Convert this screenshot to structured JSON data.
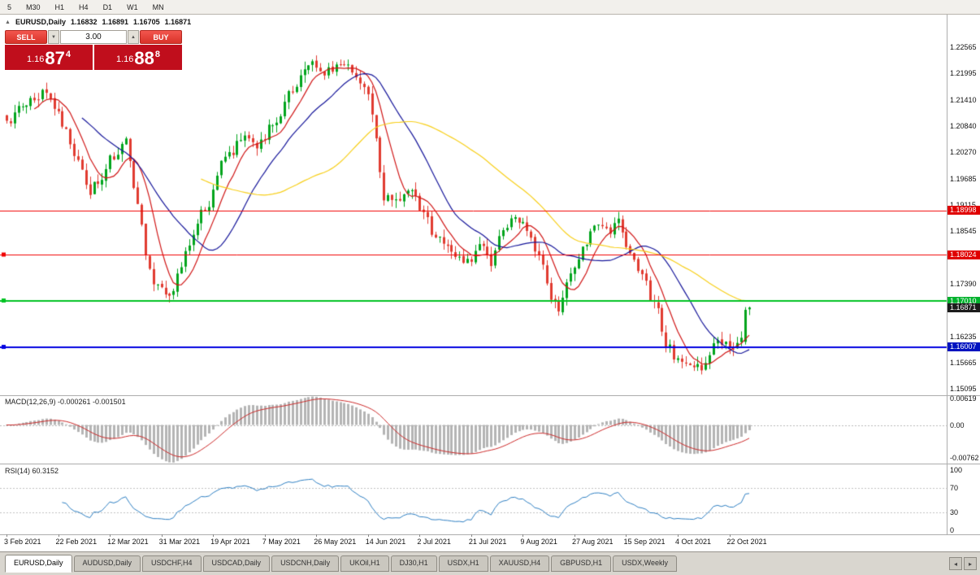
{
  "toolbar": {
    "timeframes": [
      "5",
      "M30",
      "H1",
      "H4",
      "D1",
      "W1",
      "MN"
    ]
  },
  "chart": {
    "icon": "▲",
    "symbol_title": "EURUSD,Daily",
    "ohlc": {
      "open": "1.16832",
      "high": "1.16891",
      "low": "1.16705",
      "close": "1.16871"
    },
    "trade_panel": {
      "sell_label": "SELL",
      "buy_label": "BUY",
      "volume": "3.00",
      "down_icon": "▼",
      "up_icon": "▲",
      "sell_price": {
        "prefix": "1.16",
        "big": "87",
        "sup": "4"
      },
      "buy_price": {
        "prefix": "1.16",
        "big": "88",
        "sup": "8"
      },
      "panel_color": "#c00e1c",
      "button_color": "#d93229"
    },
    "axis_labels": [
      {
        "text": "1.22565",
        "price": 1.22565
      },
      {
        "text": "1.21995",
        "price": 1.21995
      },
      {
        "text": "1.21410",
        "price": 1.2141
      },
      {
        "text": "1.20840",
        "price": 1.2084
      },
      {
        "text": "1.20270",
        "price": 1.2027
      },
      {
        "text": "1.19685",
        "price": 1.19685
      },
      {
        "text": "1.19115",
        "price": 1.19115
      },
      {
        "text": "1.18545",
        "price": 1.18545
      },
      {
        "text": "1.17390",
        "price": 1.1739
      },
      {
        "text": "1.16235",
        "price": 1.16235
      },
      {
        "text": "1.15665",
        "price": 1.15665
      },
      {
        "text": "1.15095",
        "price": 1.15095
      }
    ],
    "level_boxes": [
      {
        "text": "1.18998",
        "price": 1.18998,
        "bg": "#e00000"
      },
      {
        "text": "1.18024",
        "price": 1.18024,
        "bg": "#e00000"
      },
      {
        "text": "1.17010",
        "price": 1.1701,
        "bg": "#00b22d"
      },
      {
        "text": "1.16871",
        "price": 1.16871,
        "bg": "#1c1c1c"
      },
      {
        "text": "1.16007",
        "price": 1.16007,
        "bg": "#0013c0"
      }
    ],
    "date_labels": [
      "3 Feb 2021",
      "22 Feb 2021",
      "12 Mar 2021",
      "31 Mar 2021",
      "19 Apr 2021",
      "7 May 2021",
      "26 May 2021",
      "14 Jun 2021",
      "2 Jul 2021",
      "21 Jul 2021",
      "9 Aug 2021",
      "27 Aug 2021",
      "15 Sep 2021",
      "4 Oct 2021",
      "22 Oct 2021"
    ]
  },
  "indicators": {
    "macd": {
      "label": "MACD(12,26,9) -0.000261 -0.001501",
      "axis_labels": [
        {
          "text": "0.00619",
          "value": 0.00619
        },
        {
          "text": "0.00",
          "value": 0
        },
        {
          "text": "-0.00762",
          "value": -0.00762
        }
      ]
    },
    "rsi": {
      "label": "RSI(14) 60.3152",
      "axis_labels": [
        {
          "text": "100",
          "value": 100
        },
        {
          "text": "70",
          "value": 70
        },
        {
          "text": "30",
          "value": 30
        },
        {
          "text": "0",
          "value": 0
        }
      ]
    }
  },
  "tab_bar": {
    "tabs": [
      {
        "label": "EURUSD,Daily",
        "active": true
      },
      {
        "label": "AUDUSD,Daily",
        "active": false
      },
      {
        "label": "USDCHF,H4",
        "active": false
      },
      {
        "label": "USDCAD,Daily",
        "active": false
      },
      {
        "label": "USDCNH,Daily",
        "active": false
      },
      {
        "label": "UKOil,H1",
        "active": false
      },
      {
        "label": "DJ30,H1",
        "active": false
      },
      {
        "label": "USDX,H1",
        "active": false
      },
      {
        "label": "XAUUSD,H4",
        "active": false
      },
      {
        "label": "GBPUSD,H1",
        "active": false
      },
      {
        "label": "USDX,Weekly",
        "active": false
      }
    ],
    "scroll_left_icon": "◂",
    "scroll_right_icon": "▸"
  },
  "chart_data": {
    "type": "candlestick",
    "symbol": "EURUSD",
    "timeframe": "Daily",
    "n_candles": 188,
    "x_range": [
      "3 Feb 2021",
      "22 Oct 2021"
    ],
    "y_axis_visible": [
      1.15095,
      1.22565
    ],
    "visible_ohlc": {
      "open": 1.16832,
      "high": 1.16891,
      "low": 1.16705,
      "close": 1.16871
    },
    "last_candle": {
      "open": 1.16832,
      "high": 1.16891,
      "low": 1.16705,
      "close": 1.16871
    },
    "prev_candle": {
      "open": 1.1612,
      "high": 1.1688,
      "low": 1.1606,
      "close": 1.1682
    },
    "price_anchors": [
      [
        0,
        1.2095
      ],
      [
        4,
        1.213
      ],
      [
        9,
        1.2165
      ],
      [
        12,
        1.2115
      ],
      [
        15,
        1.207
      ],
      [
        18,
        1.2
      ],
      [
        21,
        1.195
      ],
      [
        24,
        1.1975
      ],
      [
        27,
        1.2015
      ],
      [
        30,
        1.204
      ],
      [
        33,
        1.193
      ],
      [
        35,
        1.18
      ],
      [
        38,
        1.174
      ],
      [
        41,
        1.1712
      ],
      [
        43,
        1.176
      ],
      [
        46,
        1.183
      ],
      [
        50,
        1.1905
      ],
      [
        55,
        1.2
      ],
      [
        60,
        1.206
      ],
      [
        63,
        1.2035
      ],
      [
        67,
        1.209
      ],
      [
        72,
        1.2155
      ],
      [
        76,
        1.2225
      ],
      [
        79,
        1.219
      ],
      [
        83,
        1.221
      ],
      [
        86,
        1.2228
      ],
      [
        89,
        1.2175
      ],
      [
        91,
        1.214
      ],
      [
        93,
        1.204
      ],
      [
        95,
        1.193
      ],
      [
        99,
        1.1908
      ],
      [
        102,
        1.1945
      ],
      [
        105,
        1.1895
      ],
      [
        108,
        1.1845
      ],
      [
        112,
        1.1822
      ],
      [
        116,
        1.1788
      ],
      [
        119,
        1.1812
      ],
      [
        122,
        1.1782
      ],
      [
        125,
        1.186
      ],
      [
        128,
        1.1882
      ],
      [
        131,
        1.1856
      ],
      [
        134,
        1.1788
      ],
      [
        137,
        1.1712
      ],
      [
        139,
        1.1692
      ],
      [
        142,
        1.1745
      ],
      [
        145,
        1.1812
      ],
      [
        148,
        1.1882
      ],
      [
        151,
        1.1852
      ],
      [
        154,
        1.1876
      ],
      [
        157,
        1.1818
      ],
      [
        160,
        1.1752
      ],
      [
        163,
        1.1688
      ],
      [
        166,
        1.1612
      ],
      [
        169,
        1.1572
      ],
      [
        172,
        1.1552
      ],
      [
        175,
        1.1548
      ],
      [
        177,
        1.1592
      ],
      [
        179,
        1.1622
      ],
      [
        181,
        1.1602
      ],
      [
        183,
        1.1612
      ],
      [
        185,
        1.1635
      ],
      [
        186,
        1.1682
      ],
      [
        187,
        1.16871
      ]
    ],
    "moving_averages": [
      {
        "period": 8,
        "color": "#d01616"
      },
      {
        "period": 20,
        "color": "#16169a"
      },
      {
        "period": 50,
        "color": "#f7cf1b"
      }
    ],
    "levels": [
      {
        "price": 1.18998,
        "color": "#f00000",
        "width": 1,
        "handle": false
      },
      {
        "price": 1.18024,
        "color": "#f00000",
        "width": 1,
        "handle": true
      },
      {
        "price": 1.1701,
        "color": "#00c322",
        "width": 2,
        "handle": true
      },
      {
        "price": 1.16007,
        "color": "#0000e0",
        "width": 2,
        "handle": true
      }
    ],
    "candle_up_color": "#00a41c",
    "candle_down_color": "#e13b30",
    "macd": {
      "fast": 12,
      "slow": 26,
      "signal_period": 9,
      "current": [
        -0.000261,
        -0.001501
      ],
      "axis_max": 0.00619,
      "axis_min": -0.00762,
      "histogram_color": "#b4b4b4",
      "signal_color": "#cc2a2a"
    },
    "rsi": {
      "period": 14,
      "current": 60.3152,
      "color": "#2e7fc2",
      "levels": [
        70,
        30
      ]
    }
  }
}
